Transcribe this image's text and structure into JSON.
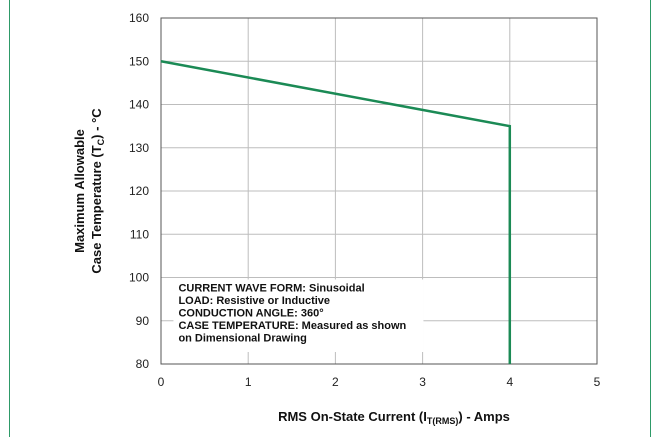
{
  "colors": {
    "series": "#1b8a55",
    "grid": "#bdbdbd",
    "frame": "#2e9a68",
    "axis": "#555555"
  },
  "chart_data": {
    "type": "line",
    "xlabel": {
      "prefix": "RMS On-State Current (I",
      "subscript": "T(RMS)",
      "suffix": ") - Amps"
    },
    "ylabel": {
      "line1": "Maximum Allowable",
      "line2_prefix": "Case Temperature (T",
      "line2_subscript": "C",
      "line2_suffix": ") - °C"
    },
    "xlim": [
      0,
      5
    ],
    "ylim": [
      80,
      160
    ],
    "x_ticks": [
      "0",
      "1",
      "2",
      "3",
      "4",
      "5"
    ],
    "y_ticks": [
      "80",
      "90",
      "100",
      "110",
      "120",
      "130",
      "140",
      "150",
      "160"
    ],
    "grid": true,
    "series": [
      {
        "x": [
          0,
          4,
          4
        ],
        "y": [
          150,
          135,
          80
        ]
      }
    ],
    "annotation": [
      "CURRENT WAVE FORM: Sinusoidal",
      "LOAD: Resistive or Inductive",
      "CONDUCTION ANGLE: 360°",
      "CASE TEMPERATURE: Measured as shown",
      "on Dimensional Drawing"
    ]
  }
}
